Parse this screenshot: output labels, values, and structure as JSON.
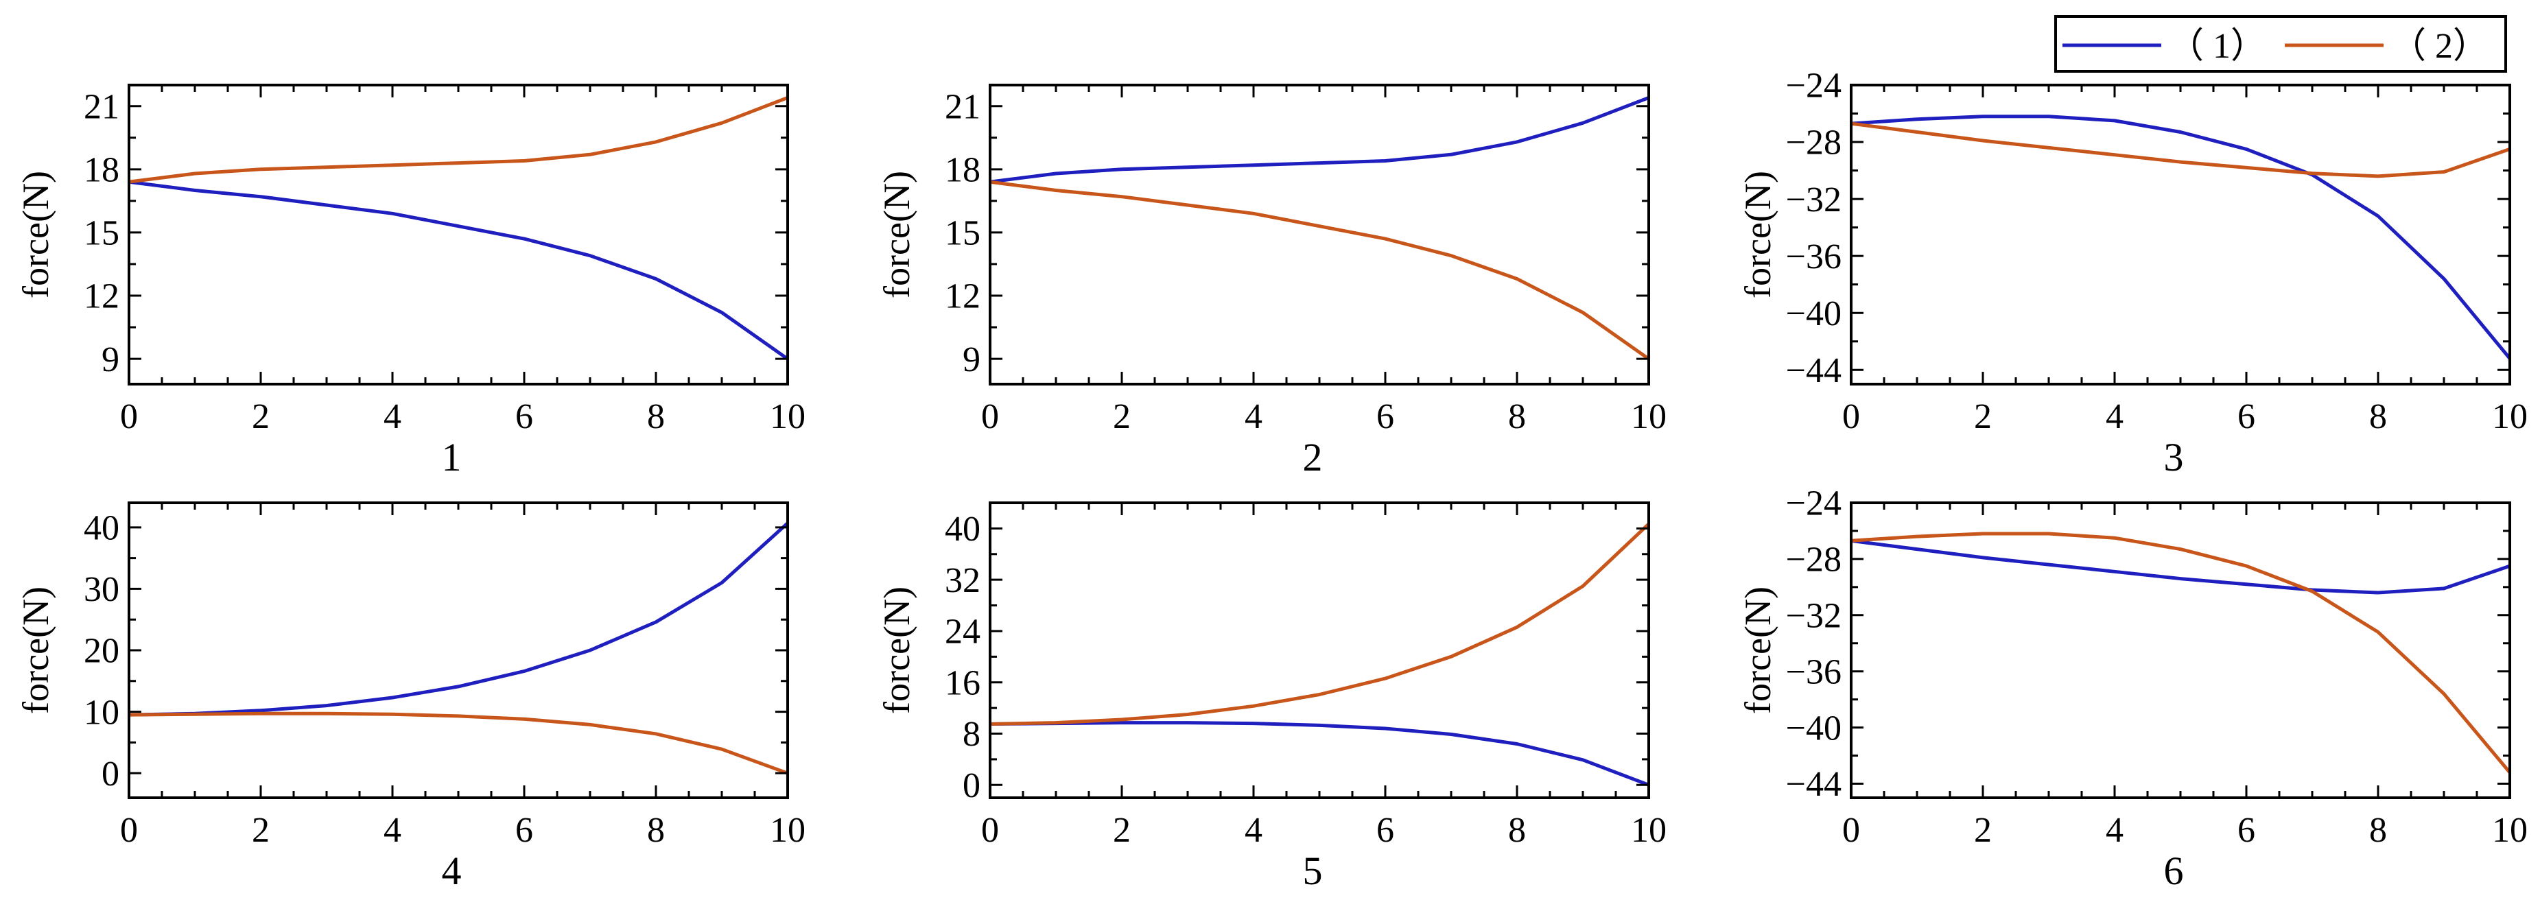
{
  "chart_data": {
    "legend": {
      "placement": "top-right",
      "entries": [
        {
          "label": "（ 1）",
          "color": "#1f1fbf"
        },
        {
          "label": "（ 2）",
          "color": "#c8551a"
        }
      ]
    },
    "panels": [
      {
        "type": "line",
        "title": "1",
        "ylabel": "force(N)",
        "xlim": [
          0,
          10
        ],
        "ylim": [
          7.8,
          22
        ],
        "xticks": [
          0,
          2,
          4,
          6,
          8,
          10
        ],
        "yticks": [
          9,
          12,
          15,
          18,
          21
        ],
        "x": [
          0,
          1,
          2,
          3,
          4,
          5,
          6,
          7,
          8,
          9,
          10
        ],
        "series": [
          {
            "name": "（ 1）",
            "values": [
              17.4,
              17.0,
              16.7,
              16.3,
              15.9,
              15.3,
              14.7,
              13.9,
              12.8,
              11.2,
              9.0
            ]
          },
          {
            "name": "（ 2）",
            "values": [
              17.4,
              17.8,
              18.0,
              18.1,
              18.2,
              18.3,
              18.4,
              18.7,
              19.3,
              20.2,
              21.4
            ]
          }
        ]
      },
      {
        "type": "line",
        "title": "2",
        "ylabel": "force(N)",
        "xlim": [
          0,
          10
        ],
        "ylim": [
          7.8,
          22
        ],
        "xticks": [
          0,
          2,
          4,
          6,
          8,
          10
        ],
        "yticks": [
          9,
          12,
          15,
          18,
          21
        ],
        "x": [
          0,
          1,
          2,
          3,
          4,
          5,
          6,
          7,
          8,
          9,
          10
        ],
        "series": [
          {
            "name": "（ 1）",
            "values": [
              17.4,
              17.8,
              18.0,
              18.1,
              18.2,
              18.3,
              18.4,
              18.7,
              19.3,
              20.2,
              21.4
            ]
          },
          {
            "name": "（ 2）",
            "values": [
              17.4,
              17.0,
              16.7,
              16.3,
              15.9,
              15.3,
              14.7,
              13.9,
              12.8,
              11.2,
              9.0
            ]
          }
        ]
      },
      {
        "type": "line",
        "title": "3",
        "ylabel": "force(N)",
        "xlim": [
          0,
          10
        ],
        "ylim": [
          -45,
          -24
        ],
        "xticks": [
          0,
          2,
          4,
          6,
          8,
          10
        ],
        "yticks": [
          -24,
          -28,
          -32,
          -36,
          -40,
          -44
        ],
        "x": [
          0,
          1,
          2,
          3,
          4,
          5,
          6,
          7,
          8,
          9,
          10
        ],
        "series": [
          {
            "name": "（ 1）",
            "values": [
              -26.7,
              -26.4,
              -26.2,
              -26.2,
              -26.5,
              -27.3,
              -28.5,
              -30.3,
              -33.2,
              -37.6,
              -43.2
            ]
          },
          {
            "name": "（ 2）",
            "values": [
              -26.7,
              -27.3,
              -27.9,
              -28.4,
              -28.9,
              -29.4,
              -29.8,
              -30.2,
              -30.4,
              -30.1,
              -28.5
            ]
          }
        ]
      },
      {
        "type": "line",
        "title": "4",
        "ylabel": "force(N)",
        "xlim": [
          0,
          10
        ],
        "ylim": [
          -4,
          44
        ],
        "xticks": [
          0,
          2,
          4,
          6,
          8,
          10
        ],
        "yticks": [
          0,
          10,
          20,
          30,
          40
        ],
        "x": [
          0,
          1,
          2,
          3,
          4,
          5,
          6,
          7,
          8,
          9,
          10
        ],
        "series": [
          {
            "name": "（ 1）",
            "values": [
              9.5,
              9.7,
              10.2,
              11.0,
              12.3,
              14.1,
              16.6,
              20.0,
              24.6,
              31.0,
              40.7
            ]
          },
          {
            "name": "（ 2）",
            "values": [
              9.5,
              9.6,
              9.7,
              9.7,
              9.6,
              9.3,
              8.8,
              7.9,
              6.4,
              3.9,
              0.0
            ]
          }
        ]
      },
      {
        "type": "line",
        "title": "5",
        "ylabel": "force(N)",
        "xlim": [
          0,
          10
        ],
        "ylim": [
          -2,
          44
        ],
        "xticks": [
          0,
          2,
          4,
          6,
          8,
          10
        ],
        "yticks": [
          0,
          8,
          16,
          24,
          32,
          40
        ],
        "x": [
          0,
          1,
          2,
          3,
          4,
          5,
          6,
          7,
          8,
          9,
          10
        ],
        "series": [
          {
            "name": "（ 1）",
            "values": [
              9.5,
              9.6,
              9.7,
              9.7,
              9.6,
              9.3,
              8.8,
              7.9,
              6.4,
              3.9,
              0.0
            ]
          },
          {
            "name": "（ 2）",
            "values": [
              9.5,
              9.7,
              10.2,
              11.0,
              12.3,
              14.1,
              16.6,
              20.0,
              24.6,
              31.0,
              40.7
            ]
          }
        ]
      },
      {
        "type": "line",
        "title": "6",
        "ylabel": "force(N)",
        "xlim": [
          0,
          10
        ],
        "ylim": [
          -45,
          -24
        ],
        "xticks": [
          0,
          2,
          4,
          6,
          8,
          10
        ],
        "yticks": [
          -24,
          -28,
          -32,
          -36,
          -40,
          -44
        ],
        "x": [
          0,
          1,
          2,
          3,
          4,
          5,
          6,
          7,
          8,
          9,
          10
        ],
        "series": [
          {
            "name": "（ 1）",
            "values": [
              -26.7,
              -27.3,
              -27.9,
              -28.4,
              -28.9,
              -29.4,
              -29.8,
              -30.2,
              -30.4,
              -30.1,
              -28.5
            ]
          },
          {
            "name": "（ 2）",
            "values": [
              -26.7,
              -26.4,
              -26.2,
              -26.2,
              -26.5,
              -27.3,
              -28.5,
              -30.3,
              -33.2,
              -37.6,
              -43.2
            ]
          }
        ]
      }
    ]
  }
}
